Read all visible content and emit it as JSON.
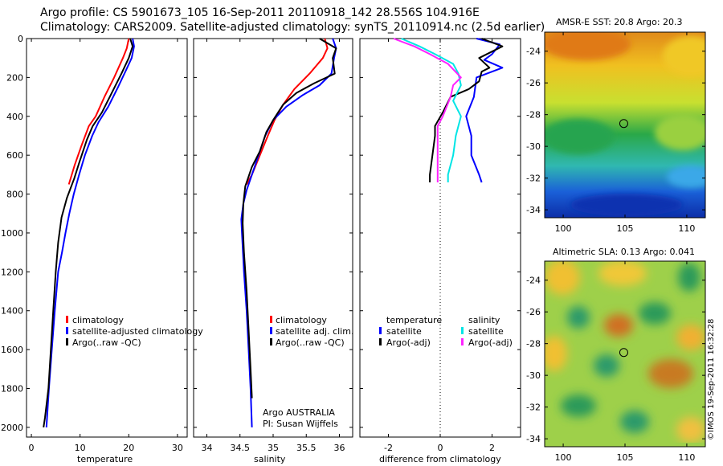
{
  "header": {
    "title_line1": "Argo profile: CS 5901673_105 16-Sep-2011 20110918_142 28.556S 104.916E",
    "title_line2": "Climatology: CARS2009. Satellite-adjusted climatology: synTS_20110914.nc (2.5d earlier)"
  },
  "colors": {
    "climatology": "#ff0000",
    "satellite": "#0000ff",
    "argo": "#000000",
    "salinity_satellite": "#00e5e5",
    "salinity_argo": "#ff22ff"
  },
  "chart_data": [
    {
      "type": "line",
      "title": "",
      "xlabel": "temperature",
      "ylabel": "",
      "xlim": [
        -1,
        32
      ],
      "ylim": [
        0,
        2050
      ],
      "y_reversed": true,
      "xticks": [
        0,
        10,
        20,
        30
      ],
      "yticks": [
        0,
        200,
        400,
        600,
        800,
        1000,
        1200,
        1400,
        1600,
        1800,
        2000
      ],
      "legend": [
        "climatology",
        "satellite-adjusted climatology",
        "Argo(..raw -QC)"
      ],
      "series": [
        {
          "name": "climatology",
          "color": "#ff0000",
          "points": [
            [
              20.0,
              0
            ],
            [
              19.6,
              50
            ],
            [
              18.8,
              100
            ],
            [
              17.0,
              200
            ],
            [
              15.0,
              300
            ],
            [
              13.2,
              400
            ],
            [
              11.8,
              450
            ],
            [
              10.3,
              550
            ],
            [
              8.9,
              650
            ],
            [
              7.7,
              750
            ]
          ]
        },
        {
          "name": "satellite-adjusted climatology",
          "color": "#0000ff",
          "points": [
            [
              20.8,
              0
            ],
            [
              21.1,
              40
            ],
            [
              20.6,
              100
            ],
            [
              19.5,
              160
            ],
            [
              17.8,
              250
            ],
            [
              15.8,
              350
            ],
            [
              13.8,
              430
            ],
            [
              12.5,
              500
            ],
            [
              11.0,
              600
            ],
            [
              9.8,
              700
            ],
            [
              8.7,
              800
            ],
            [
              7.8,
              900
            ],
            [
              7.0,
              1000
            ],
            [
              6.3,
              1100
            ],
            [
              5.5,
              1200
            ],
            [
              4.8,
              1400
            ],
            [
              4.2,
              1600
            ],
            [
              3.6,
              1800
            ],
            [
              3.1,
              2000
            ]
          ]
        },
        {
          "name": "Argo(..raw -QC)",
          "color": "#000000",
          "points": [
            [
              20.3,
              0
            ],
            [
              20.8,
              40
            ],
            [
              20.0,
              100
            ],
            [
              18.5,
              180
            ],
            [
              16.5,
              280
            ],
            [
              14.5,
              380
            ],
            [
              12.6,
              450
            ],
            [
              11.4,
              520
            ],
            [
              9.8,
              640
            ],
            [
              8.8,
              720
            ],
            [
              7.3,
              820
            ],
            [
              6.2,
              920
            ],
            [
              5.5,
              1050
            ],
            [
              5.0,
              1200
            ],
            [
              4.5,
              1400
            ],
            [
              4.0,
              1600
            ],
            [
              3.5,
              1800
            ],
            [
              2.8,
              1950
            ],
            [
              2.5,
              2000
            ]
          ]
        }
      ]
    },
    {
      "type": "line",
      "title": "",
      "xlabel": "salinity",
      "ylabel": "",
      "xlim": [
        33.8,
        36.2
      ],
      "ylim": [
        0,
        2050
      ],
      "y_reversed": true,
      "xticks": [
        34,
        34.5,
        35,
        35.5,
        36
      ],
      "legend": [
        "climatology",
        "satellite adj. clim.",
        "Argo(..raw -QC)"
      ],
      "annotations": [
        "Argo AUSTRALIA",
        "PI: Susan Wijffels"
      ],
      "series": [
        {
          "name": "climatology",
          "color": "#ff0000",
          "points": [
            [
              35.78,
              0
            ],
            [
              35.82,
              50
            ],
            [
              35.75,
              100
            ],
            [
              35.55,
              180
            ],
            [
              35.32,
              260
            ],
            [
              35.15,
              340
            ],
            [
              35.02,
              420
            ],
            [
              34.92,
              500
            ],
            [
              34.8,
              600
            ],
            [
              34.68,
              700
            ],
            [
              34.6,
              750
            ]
          ]
        },
        {
          "name": "satellite adj. clim.",
          "color": "#0000ff",
          "points": [
            [
              35.9,
              0
            ],
            [
              35.95,
              50
            ],
            [
              35.92,
              100
            ],
            [
              35.88,
              180
            ],
            [
              35.7,
              240
            ],
            [
              35.45,
              290
            ],
            [
              35.2,
              350
            ],
            [
              35.0,
              420
            ],
            [
              34.88,
              500
            ],
            [
              34.78,
              600
            ],
            [
              34.68,
              700
            ],
            [
              34.6,
              780
            ],
            [
              34.55,
              850
            ],
            [
              34.52,
              930
            ],
            [
              34.53,
              1000
            ],
            [
              34.56,
              1200
            ],
            [
              34.6,
              1400
            ],
            [
              34.63,
              1600
            ],
            [
              34.66,
              1800
            ],
            [
              34.68,
              2000
            ]
          ]
        },
        {
          "name": "Argo(..raw -QC)",
          "color": "#000000",
          "points": [
            [
              35.7,
              0
            ],
            [
              35.95,
              50
            ],
            [
              35.9,
              100
            ],
            [
              35.93,
              180
            ],
            [
              35.62,
              230
            ],
            [
              35.35,
              280
            ],
            [
              35.15,
              340
            ],
            [
              35.0,
              420
            ],
            [
              34.9,
              480
            ],
            [
              34.8,
              580
            ],
            [
              34.68,
              660
            ],
            [
              34.58,
              760
            ],
            [
              34.55,
              850
            ],
            [
              34.54,
              950
            ],
            [
              34.56,
              1100
            ],
            [
              34.6,
              1300
            ],
            [
              34.63,
              1500
            ],
            [
              34.66,
              1700
            ],
            [
              34.68,
              1850
            ]
          ]
        }
      ]
    },
    {
      "type": "line",
      "title": "",
      "xlabel": "difference from climatology",
      "ylabel": "",
      "xlim": [
        -3.1,
        3.1
      ],
      "ylim": [
        0,
        2050
      ],
      "y_reversed": true,
      "xticks": [
        -2,
        0,
        2
      ],
      "zero_line": true,
      "legend_temperature_heading": "temperature",
      "legend_salinity_heading": "salinity",
      "legend": [
        "satellite",
        "Argo(-adj)",
        "satellite",
        "Argo(-adj)"
      ],
      "series": [
        {
          "name": "temperature satellite",
          "color": "#0000ff",
          "points": [
            [
              1.4,
              0
            ],
            [
              2.3,
              30
            ],
            [
              2.0,
              80
            ],
            [
              1.7,
              110
            ],
            [
              2.4,
              150
            ],
            [
              1.4,
              200
            ],
            [
              1.3,
              300
            ],
            [
              1.0,
              400
            ],
            [
              1.2,
              500
            ],
            [
              1.2,
              600
            ],
            [
              1.5,
              700
            ],
            [
              1.6,
              740
            ]
          ]
        },
        {
          "name": "temperature Argo(-adj)",
          "color": "#000000",
          "points": [
            [
              1.6,
              0
            ],
            [
              2.4,
              40
            ],
            [
              1.5,
              100
            ],
            [
              1.9,
              150
            ],
            [
              1.6,
              170
            ],
            [
              1.5,
              220
            ],
            [
              1.1,
              260
            ],
            [
              0.4,
              300
            ],
            [
              0.1,
              380
            ],
            [
              -0.2,
              450
            ],
            [
              -0.2,
              500
            ],
            [
              -0.3,
              600
            ],
            [
              -0.4,
              700
            ],
            [
              -0.4,
              740
            ]
          ]
        },
        {
          "name": "salinity satellite",
          "color": "#00e5e5",
          "points": [
            [
              -1.5,
              0
            ],
            [
              -0.8,
              40
            ],
            [
              -0.2,
              80
            ],
            [
              0.5,
              130
            ],
            [
              0.7,
              180
            ],
            [
              0.8,
              240
            ],
            [
              0.5,
              320
            ],
            [
              0.8,
              400
            ],
            [
              0.6,
              500
            ],
            [
              0.5,
              600
            ],
            [
              0.3,
              700
            ],
            [
              0.3,
              740
            ]
          ]
        },
        {
          "name": "salinity Argo(-adj)",
          "color": "#ff22ff",
          "points": [
            [
              -1.8,
              0
            ],
            [
              -1.0,
              40
            ],
            [
              -0.4,
              80
            ],
            [
              0.3,
              130
            ],
            [
              0.8,
              200
            ],
            [
              0.5,
              240
            ],
            [
              0.4,
              300
            ],
            [
              0.1,
              400
            ],
            [
              -0.1,
              450
            ],
            [
              -0.1,
              500
            ],
            [
              -0.1,
              600
            ],
            [
              -0.1,
              700
            ],
            [
              -0.1,
              740
            ]
          ]
        }
      ]
    },
    {
      "type": "heatmap",
      "title": "AMSR-E SST: 20.8 Argo: 20.3",
      "xlim": [
        98.5,
        111.5
      ],
      "ylim": [
        -34.5,
        -22.8
      ],
      "xticks": [
        100,
        105,
        110
      ],
      "yticks": [
        -24,
        -26,
        -28,
        -30,
        -32,
        -34
      ],
      "argo_marker": [
        104.9,
        -28.56
      ]
    },
    {
      "type": "heatmap",
      "title": "Altimetric SLA: 0.13 Argo: 0.041",
      "xlim": [
        98.5,
        111.5
      ],
      "ylim": [
        -34.5,
        -22.8
      ],
      "xticks": [
        100,
        105,
        110
      ],
      "yticks": [
        -24,
        -26,
        -28,
        -30,
        -32,
        -34
      ],
      "argo_marker": [
        104.9,
        -28.56
      ]
    }
  ],
  "footer": {
    "credit": "©IMOS 19-Sep-2011 16:32:28"
  }
}
